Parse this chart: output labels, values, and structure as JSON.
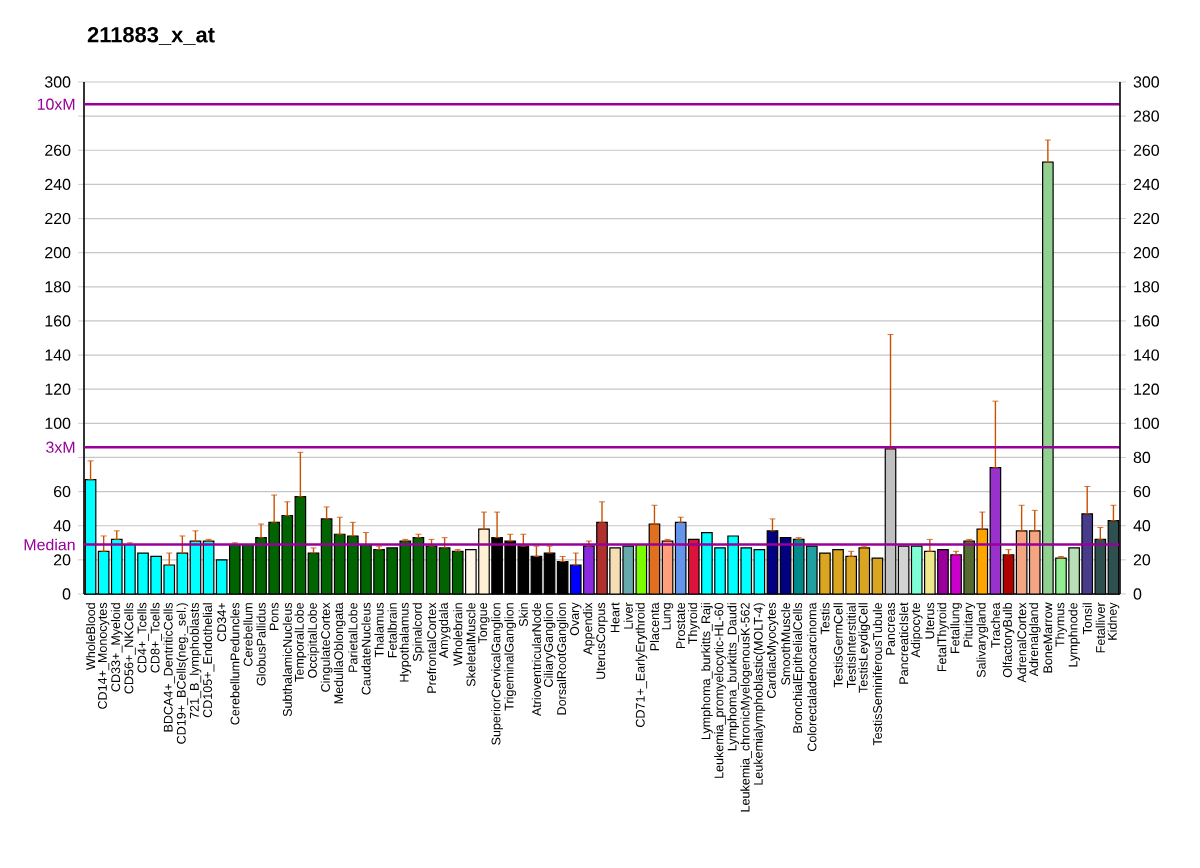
{
  "chart_data": {
    "type": "bar",
    "title": "211883_x_at",
    "categories": [
      "WholeBlood",
      "CD14+_Monocytes",
      "CD33+_Myeloid",
      "CD56+_NKCells",
      "CD4+_Tcells",
      "CD8+_Tcells",
      "BDCA4+_DentriticCells",
      "CD19+_BCells(neg._sel.)",
      "721_B_lymphoblasts",
      "CD105+_Endothelial",
      "CD34+",
      "CerebellumPeduncles",
      "Cerebellum",
      "GlobusPallidus",
      "Pons",
      "SubthalamicNucleus",
      "TemporalLobe",
      "OccipitalLobe",
      "CingulateCortex",
      "MedullaOblongata",
      "ParietalLobe",
      "CaudateNucleus",
      "Thalamus",
      "Fetalbrain",
      "Hypothalamus",
      "Spinalcord",
      "PrefrontalCortex",
      "Amygdala",
      "Wholebrain",
      "SkeletalMuscle",
      "Tongue",
      "SuperiorCervicalGanglion",
      "TrigeminalGanglion",
      "Skin",
      "AtrioventricularNode",
      "CiliaryGanglion",
      "DorsalRootGanglion",
      "Ovary",
      "Appendix",
      "UterusCorpus",
      "Heart",
      "Liver",
      "CD71+_EarlyErythroid",
      "Placenta",
      "Lung",
      "Prostate",
      "Thyroid",
      "Lymphoma_burkitts_Raji",
      "Leukemia_promyelocytic-HL-60",
      "Lymphoma_burkitts_Daudi",
      "Leukemia_chronicMyelogenousK-562",
      "Leukemialymphoblastic(MOLT-4)",
      "CardiacMyocytes",
      "SmoothMuscle",
      "BronchialEpithelialCells",
      "Colorectaladenocarcinoma",
      "Testis",
      "TestisGermCell",
      "TestisInterstitial",
      "TestisLeydigCell",
      "TestisSeminiferousTubule",
      "Pancreas",
      "PancreaticIslet",
      "Adipocyte",
      "Uterus",
      "FetalThyroid",
      "Fetallung",
      "Pituitary",
      "Salivarygland",
      "Trachea",
      "OlfactoryBulb",
      "AdrenalCortex",
      "Adrenalgland",
      "BoneMarrow",
      "Thymus",
      "Lymphnode",
      "Tonsil",
      "Fetalliver",
      "Kidney"
    ],
    "values": [
      67,
      25,
      32,
      29,
      24,
      22,
      17,
      24,
      31,
      31,
      20,
      29,
      29,
      33,
      42,
      46,
      57,
      24,
      44,
      35,
      34,
      29,
      26,
      27,
      31,
      33,
      28,
      27,
      25,
      26,
      38,
      33,
      31,
      28,
      22,
      24,
      19,
      17,
      28,
      42,
      27,
      28,
      29,
      41,
      31,
      42,
      32,
      36,
      27,
      34,
      27,
      26,
      37,
      33,
      32,
      28,
      24,
      26,
      22,
      27,
      21,
      85,
      28,
      28,
      25,
      26,
      23,
      31,
      38,
      74,
      23,
      37,
      37,
      253,
      21,
      27,
      47,
      32,
      43
    ],
    "errors": [
      [
        67,
        78
      ],
      [
        25,
        34
      ],
      [
        32,
        37
      ],
      [
        29,
        30
      ],
      null,
      null,
      [
        17,
        24
      ],
      [
        24,
        34
      ],
      [
        31,
        37
      ],
      [
        31,
        32
      ],
      null,
      [
        29,
        30
      ],
      null,
      [
        33,
        41
      ],
      [
        42,
        58
      ],
      [
        46,
        54
      ],
      [
        57,
        83
      ],
      [
        24,
        27
      ],
      [
        44,
        51
      ],
      [
        35,
        45
      ],
      [
        34,
        42
      ],
      [
        29,
        36
      ],
      [
        26,
        28
      ],
      null,
      [
        31,
        32
      ],
      [
        33,
        35
      ],
      [
        28,
        32
      ],
      [
        27,
        33
      ],
      [
        25,
        26
      ],
      null,
      [
        38,
        48
      ],
      [
        33,
        48
      ],
      [
        31,
        35
      ],
      [
        28,
        35
      ],
      [
        22,
        28
      ],
      [
        24,
        28
      ],
      [
        19,
        22
      ],
      [
        17,
        24
      ],
      [
        28,
        31
      ],
      [
        42,
        54
      ],
      null,
      null,
      null,
      [
        41,
        52
      ],
      [
        31,
        32
      ],
      [
        42,
        45
      ],
      null,
      null,
      null,
      null,
      null,
      null,
      [
        37,
        44
      ],
      null,
      [
        32,
        33
      ],
      null,
      null,
      null,
      [
        22,
        25
      ],
      [
        27,
        28
      ],
      null,
      [
        85,
        152
      ],
      null,
      null,
      [
        25,
        32
      ],
      null,
      [
        23,
        25
      ],
      [
        31,
        32
      ],
      [
        38,
        48
      ],
      [
        74,
        113
      ],
      [
        23,
        26
      ],
      [
        37,
        52
      ],
      [
        37,
        49
      ],
      [
        253,
        266
      ],
      [
        21,
        22
      ],
      null,
      [
        47,
        63
      ],
      [
        32,
        39
      ],
      [
        43,
        52
      ]
    ],
    "colors": [
      "#00ffff",
      "#00ffff",
      "#00ffff",
      "#00ffff",
      "#00ffff",
      "#00ffff",
      "#00ffff",
      "#00ffff",
      "#00ffff",
      "#00ffff",
      "#00ffff",
      "#006400",
      "#006400",
      "#006400",
      "#006400",
      "#006400",
      "#006400",
      "#006400",
      "#006400",
      "#006400",
      "#006400",
      "#006400",
      "#006400",
      "#006400",
      "#006400",
      "#006400",
      "#006400",
      "#006400",
      "#006400",
      "#fff5e6",
      "#ffefd5",
      "#000000",
      "#000000",
      "#000000",
      "#000000",
      "#000000",
      "#000000",
      "#0000ff",
      "#8a2be2",
      "#b03030",
      "#f5deb3",
      "#66aaaa",
      "#7cfc00",
      "#e07020",
      "#ffa07a",
      "#6495ed",
      "#dc143c",
      "#00ffff",
      "#00ffff",
      "#00ffff",
      "#00ffff",
      "#00ffff",
      "#000080",
      "#000080",
      "#008b8b",
      "#20a0a0",
      "#daa520",
      "#daa520",
      "#daa520",
      "#daa520",
      "#daa520",
      "#c0c0c0",
      "#d3d3d3",
      "#7fffd4",
      "#f0e68c",
      "#990099",
      "#cc00cc",
      "#556b2f",
      "#ffa500",
      "#9932cc",
      "#b00000",
      "#f4a582",
      "#f4a582",
      "#90d090",
      "#90ee90",
      "#b8e0b8",
      "#483d8b",
      "#2f4f4f",
      "#2f5050"
    ],
    "ylim": [
      0,
      300
    ],
    "yticks": [
      0,
      20,
      40,
      60,
      {
        "value": 80,
        "label": null
      },
      100,
      120,
      140,
      160,
      180,
      200,
      220,
      240,
      260,
      {
        "value": 280,
        "label": null
      },
      300
    ],
    "y2lim": [
      0,
      300
    ],
    "y2ticks": [
      0,
      20,
      40,
      60,
      80,
      100,
      120,
      140,
      160,
      180,
      200,
      220,
      240,
      260,
      280,
      300
    ],
    "grid": "y",
    "ref_lines": [
      {
        "axis": "y",
        "value": 29,
        "label": "Median",
        "color": "#990099"
      },
      {
        "axis": "y",
        "value": 86,
        "label": "3xM",
        "color": "#990099"
      },
      {
        "axis": "y",
        "value": 287,
        "label": "10xM",
        "color": "#990099"
      }
    ]
  }
}
